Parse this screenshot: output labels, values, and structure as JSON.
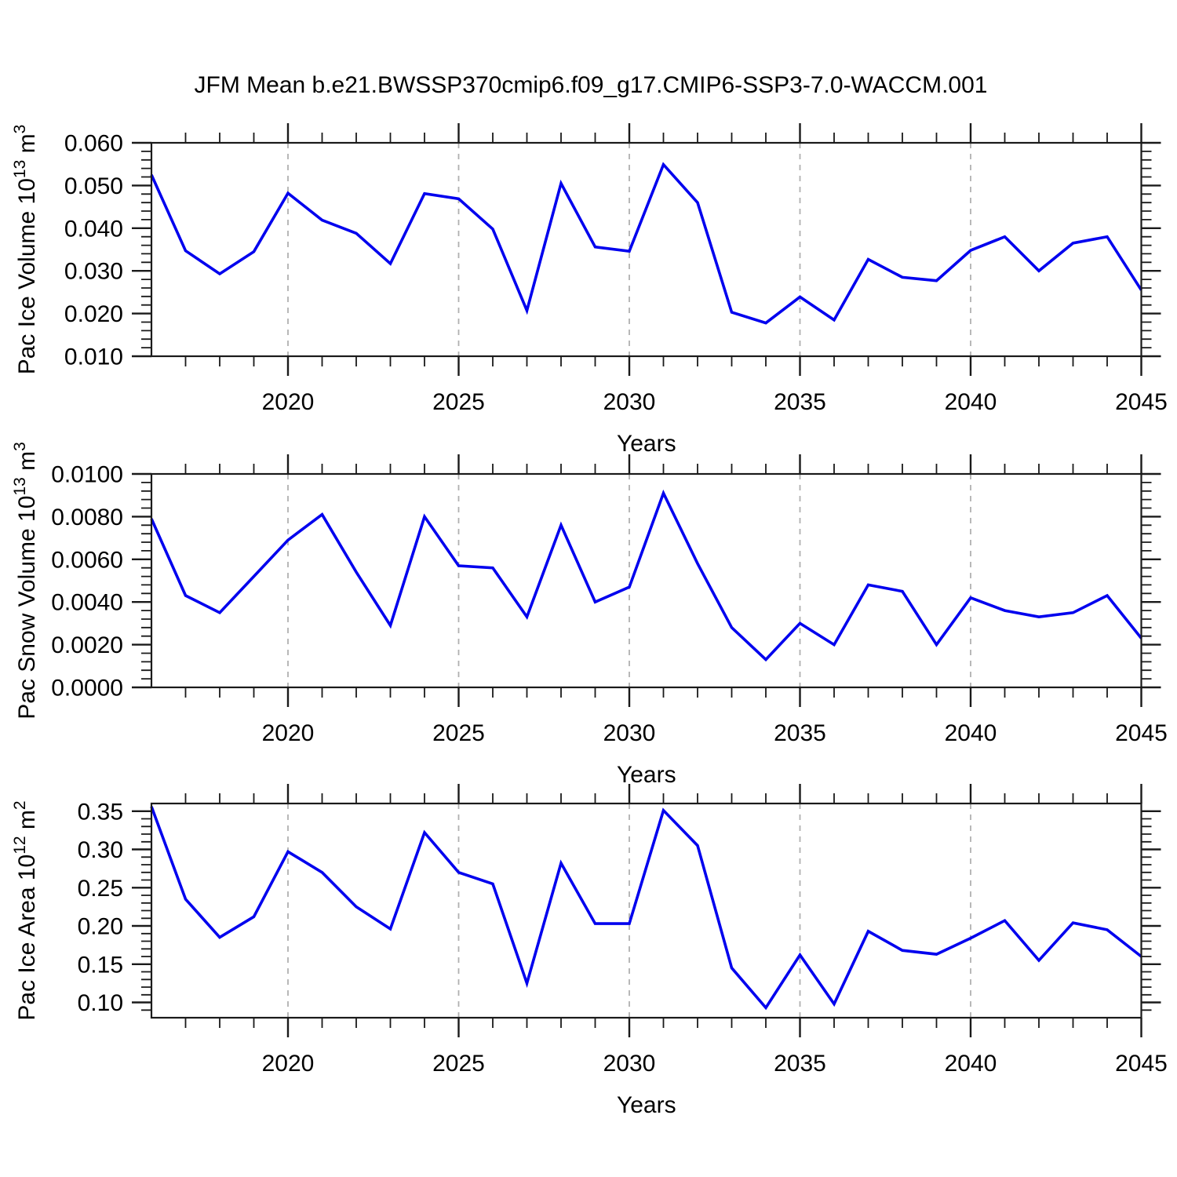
{
  "figure": {
    "title": "JFM Mean b.e21.BWSSP370cmip6.f09_g17.CMIP6-SSP3-7.0-WACCM.001",
    "line_color": "#0000ee",
    "grid_color": "#b0b0b0",
    "axis_color": "#1a1a1a",
    "text_color": "#000000"
  },
  "chart_data": [
    {
      "type": "line",
      "name": "pac-ice-volume",
      "ylabel_parts": [
        {
          "text": "Pac Ice Volume 10",
          "sup": false
        },
        {
          "text": "13",
          "sup": true
        },
        {
          "text": " m",
          "sup": false
        },
        {
          "text": "3",
          "sup": true
        }
      ],
      "xlabel": "Years",
      "xlim": [
        2016,
        2045
      ],
      "ylim": [
        0.01,
        0.06
      ],
      "x_minor_step": 1,
      "y_minor_step": 0.002,
      "grid_years": [
        2020,
        2025,
        2030,
        2035,
        2040
      ],
      "xticks": [
        {
          "value": 2020,
          "label": "2020"
        },
        {
          "value": 2025,
          "label": "2025"
        },
        {
          "value": 2030,
          "label": "2030"
        },
        {
          "value": 2035,
          "label": "2035"
        },
        {
          "value": 2040,
          "label": "2040"
        },
        {
          "value": 2045,
          "label": "2045"
        }
      ],
      "yticks": [
        {
          "value": 0.06,
          "label": "0.060"
        },
        {
          "value": 0.05,
          "label": "0.050"
        },
        {
          "value": 0.04,
          "label": "0.040"
        },
        {
          "value": 0.03,
          "label": "0.030"
        },
        {
          "value": 0.02,
          "label": "0.020"
        },
        {
          "value": 0.01,
          "label": "0.010"
        }
      ],
      "x": [
        2016,
        2017,
        2018,
        2019,
        2020,
        2021,
        2022,
        2023,
        2024,
        2025,
        2026,
        2027,
        2028,
        2029,
        2030,
        2031,
        2032,
        2033,
        2034,
        2035,
        2036,
        2037,
        2038,
        2039,
        2040,
        2041,
        2042,
        2043,
        2044,
        2045
      ],
      "values": [
        0.0525,
        0.0347,
        0.0293,
        0.0345,
        0.0482,
        0.0419,
        0.0388,
        0.0317,
        0.0481,
        0.0469,
        0.0398,
        0.0207,
        0.0505,
        0.0356,
        0.0346,
        0.0549,
        0.046,
        0.0203,
        0.0178,
        0.0239,
        0.0185,
        0.0327,
        0.0285,
        0.0277,
        0.0348,
        0.038,
        0.03,
        0.0365,
        0.038,
        0.0255
      ]
    },
    {
      "type": "line",
      "name": "pac-snow-volume",
      "ylabel_parts": [
        {
          "text": "Pac Snow Volume 10",
          "sup": false
        },
        {
          "text": "13",
          "sup": true
        },
        {
          "text": " m",
          "sup": false
        },
        {
          "text": "3",
          "sup": true
        }
      ],
      "xlabel": "Years",
      "xlim": [
        2016,
        2045
      ],
      "ylim": [
        0.0,
        0.01
      ],
      "x_minor_step": 1,
      "y_minor_step": 0.0004,
      "grid_years": [
        2020,
        2025,
        2030,
        2035,
        2040
      ],
      "xticks": [
        {
          "value": 2020,
          "label": "2020"
        },
        {
          "value": 2025,
          "label": "2025"
        },
        {
          "value": 2030,
          "label": "2030"
        },
        {
          "value": 2035,
          "label": "2035"
        },
        {
          "value": 2040,
          "label": "2040"
        },
        {
          "value": 2045,
          "label": "2045"
        }
      ],
      "yticks": [
        {
          "value": 0.01,
          "label": "0.0100"
        },
        {
          "value": 0.008,
          "label": "0.0080"
        },
        {
          "value": 0.006,
          "label": "0.0060"
        },
        {
          "value": 0.004,
          "label": "0.0040"
        },
        {
          "value": 0.002,
          "label": "0.0020"
        },
        {
          "value": 0.0,
          "label": "0.0000"
        }
      ],
      "x": [
        2016,
        2017,
        2018,
        2019,
        2020,
        2021,
        2022,
        2023,
        2024,
        2025,
        2026,
        2027,
        2028,
        2029,
        2030,
        2031,
        2032,
        2033,
        2034,
        2035,
        2036,
        2037,
        2038,
        2039,
        2040,
        2041,
        2042,
        2043,
        2044,
        2045
      ],
      "values": [
        0.0079,
        0.0043,
        0.0035,
        0.0052,
        0.0069,
        0.0081,
        0.0054,
        0.0029,
        0.008,
        0.0057,
        0.0056,
        0.0033,
        0.0076,
        0.004,
        0.0047,
        0.0091,
        0.0058,
        0.0028,
        0.0013,
        0.003,
        0.002,
        0.0048,
        0.0045,
        0.002,
        0.0042,
        0.0036,
        0.0033,
        0.0035,
        0.0043,
        0.0023
      ]
    },
    {
      "type": "line",
      "name": "pac-ice-area",
      "ylabel_parts": [
        {
          "text": "Pac Ice Area 10",
          "sup": false
        },
        {
          "text": "12",
          "sup": true
        },
        {
          "text": " m",
          "sup": false
        },
        {
          "text": "2",
          "sup": true
        }
      ],
      "xlabel": "Years",
      "xlim": [
        2016,
        2045
      ],
      "ylim": [
        0.08,
        0.36
      ],
      "x_minor_step": 1,
      "y_minor_step": 0.01,
      "grid_years": [
        2020,
        2025,
        2030,
        2035,
        2040
      ],
      "xticks": [
        {
          "value": 2020,
          "label": "2020"
        },
        {
          "value": 2025,
          "label": "2025"
        },
        {
          "value": 2030,
          "label": "2030"
        },
        {
          "value": 2035,
          "label": "2035"
        },
        {
          "value": 2040,
          "label": "2040"
        },
        {
          "value": 2045,
          "label": "2045"
        }
      ],
      "yticks": [
        {
          "value": 0.35,
          "label": "0.35"
        },
        {
          "value": 0.3,
          "label": "0.30"
        },
        {
          "value": 0.25,
          "label": "0.25"
        },
        {
          "value": 0.2,
          "label": "0.20"
        },
        {
          "value": 0.15,
          "label": "0.15"
        },
        {
          "value": 0.1,
          "label": "0.10"
        }
      ],
      "x": [
        2016,
        2017,
        2018,
        2019,
        2020,
        2021,
        2022,
        2023,
        2024,
        2025,
        2026,
        2027,
        2028,
        2029,
        2030,
        2031,
        2032,
        2033,
        2034,
        2035,
        2036,
        2037,
        2038,
        2039,
        2040,
        2041,
        2042,
        2043,
        2044,
        2045
      ],
      "values": [
        0.356,
        0.235,
        0.185,
        0.212,
        0.297,
        0.27,
        0.225,
        0.196,
        0.322,
        0.27,
        0.255,
        0.125,
        0.282,
        0.203,
        0.203,
        0.351,
        0.305,
        0.145,
        0.093,
        0.162,
        0.098,
        0.193,
        0.168,
        0.163,
        0.184,
        0.207,
        0.155,
        0.204,
        0.195,
        0.16
      ]
    }
  ]
}
